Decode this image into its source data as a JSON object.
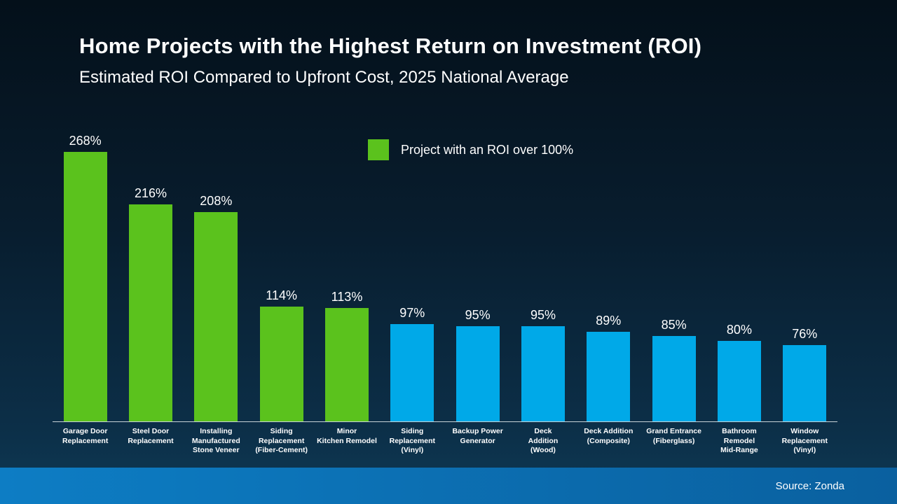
{
  "header": {
    "title": "Home Projects with the Highest Return on Investment (ROI)",
    "subtitle": "Estimated ROI Compared to Upfront Cost, 2025 National Average"
  },
  "legend": {
    "label": "Project with an ROI over 100%"
  },
  "footer": {
    "source": "Source: Zonda"
  },
  "colors": {
    "green": "#5bc21d",
    "blue": "#00a9e8",
    "background_top": "#04101a",
    "background_bottom": "#0e3a55",
    "footer_left": "#0d7dc4",
    "footer_right": "#0a609f",
    "text": "#ffffff"
  },
  "chart_data": {
    "type": "bar",
    "title": "Home Projects with the Highest Return on Investment (ROI)",
    "subtitle": "Estimated ROI Compared to Upfront Cost, 2025 National Average",
    "unit": "%",
    "categories": [
      "Garage Door\nReplacement",
      "Steel Door\nReplacement",
      "Installing\nManufactured\nStone Veneer",
      "Siding\nReplacement\n(Fiber-Cement)",
      "Minor\nKitchen Remodel",
      "Siding\nReplacement\n(Vinyl)",
      "Backup Power\nGenerator",
      "Deck\nAddition\n(Wood)",
      "Deck Addition\n(Composite)",
      "Grand Entrance\n(Fiberglass)",
      "Bathroom\nRemodel\nMid-Range",
      "Window\nReplacement\n(Vinyl)"
    ],
    "values": [
      268,
      216,
      208,
      114,
      113,
      97,
      95,
      95,
      89,
      85,
      80,
      76
    ],
    "value_labels": [
      "268%",
      "216%",
      "208%",
      "114%",
      "113%",
      "97%",
      "95%",
      "95%",
      "89%",
      "85%",
      "80%",
      "76%"
    ],
    "bar_colors": [
      "green",
      "green",
      "green",
      "green",
      "green",
      "blue",
      "blue",
      "blue",
      "blue",
      "blue",
      "blue",
      "blue"
    ],
    "legend": [
      {
        "label": "Project with an ROI over 100%",
        "color": "green"
      }
    ],
    "ylim": [
      0,
      280
    ],
    "grid": false,
    "legend_position": "top-center",
    "source": "Source: Zonda"
  }
}
